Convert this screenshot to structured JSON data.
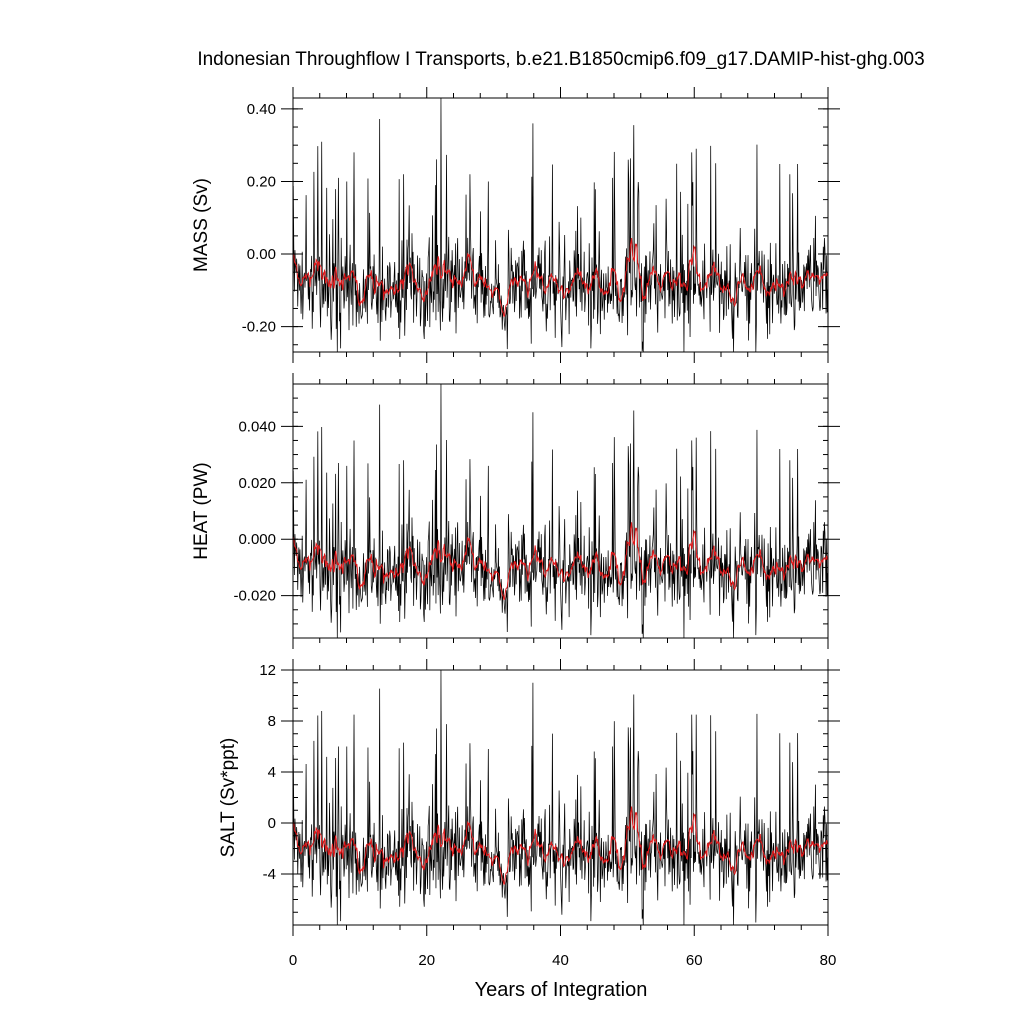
{
  "chart_data": {
    "type": "line",
    "title": "Indonesian Throughflow I Transports, b.e21.B1850cmip6.f09_g17.DAMIP-hist-ghg.003",
    "xlabel": "Years of Integration",
    "xlim": [
      0,
      80
    ],
    "xticks": [
      0,
      20,
      40,
      60,
      80
    ],
    "xtick_labels": [
      "0",
      "20",
      "40",
      "60",
      "80"
    ],
    "grid": false,
    "legend": "none",
    "colors": {
      "raw": "#000000",
      "smoothed": "#e0191b"
    },
    "panels": [
      {
        "ylabel": "MASS (Sv)",
        "ylim": [
          -0.27,
          0.43
        ],
        "yticks": [
          0.4,
          0.2,
          0.0,
          -0.2
        ],
        "ytick_labels": [
          "0.40",
          "0.20",
          "0.00",
          "-0.20"
        ],
        "minor_step": 0.05,
        "baseline": -0.09,
        "amplitude": 0.085,
        "peaks": [
          [
            22.1,
            0.43
          ],
          [
            35.9,
            0.36
          ],
          [
            60.3,
            0.29
          ],
          [
            59.6,
            0.28
          ],
          [
            9.1,
            0.28
          ],
          [
            8.0,
            0.2
          ],
          [
            50.1,
            0.26
          ],
          [
            63.2,
            0.25
          ],
          [
            16.5,
            0.22
          ],
          [
            74.3,
            0.22
          ],
          [
            6.8,
            0.21
          ],
          [
            29.2,
            0.2
          ],
          [
            47.8,
            0.21
          ]
        ],
        "troughs": [
          [
            52.4,
            -0.27
          ],
          [
            69.2,
            -0.27
          ],
          [
            7.1,
            -0.26
          ],
          [
            44.5,
            -0.26
          ]
        ]
      },
      {
        "ylabel": "HEAT (PW)",
        "ylim": [
          -0.035,
          0.055
        ],
        "yticks": [
          0.04,
          0.02,
          0.0,
          -0.02
        ],
        "ytick_labels": [
          "0.040",
          "0.020",
          "0.000",
          "-0.020"
        ],
        "minor_step": 0.005,
        "baseline": -0.011,
        "amplitude": 0.0108,
        "peaks": [
          [
            22.1,
            0.055
          ],
          [
            35.9,
            0.045
          ],
          [
            60.3,
            0.036
          ],
          [
            59.6,
            0.035
          ],
          [
            9.1,
            0.035
          ],
          [
            8.0,
            0.026
          ],
          [
            50.1,
            0.033
          ],
          [
            63.2,
            0.032
          ],
          [
            16.5,
            0.028
          ],
          [
            74.3,
            0.028
          ],
          [
            6.8,
            0.027
          ],
          [
            29.2,
            0.026
          ],
          [
            47.8,
            0.027
          ]
        ],
        "troughs": [
          [
            52.4,
            -0.035
          ],
          [
            69.2,
            -0.034
          ],
          [
            7.1,
            -0.033
          ],
          [
            44.5,
            -0.034
          ]
        ]
      },
      {
        "ylabel": "SALT (Sv*ppt)",
        "ylim": [
          -8,
          12
        ],
        "yticks": [
          12,
          8,
          4,
          0,
          -4
        ],
        "ytick_labels": [
          "12",
          "8",
          "4",
          "0",
          "-4"
        ],
        "minor_step": 1,
        "baseline": -2.5,
        "amplitude": 2.4,
        "peaks": [
          [
            22.1,
            12.0
          ],
          [
            35.9,
            11.0
          ],
          [
            60.3,
            8.5
          ],
          [
            59.6,
            8.5
          ],
          [
            9.1,
            8.5
          ],
          [
            8.0,
            6.0
          ],
          [
            50.1,
            7.5
          ],
          [
            63.2,
            7.2
          ],
          [
            16.5,
            6.3
          ],
          [
            74.3,
            6.3
          ],
          [
            6.8,
            6.0
          ],
          [
            29.2,
            5.8
          ],
          [
            47.8,
            6.0
          ]
        ],
        "troughs": [
          [
            52.4,
            -8.0
          ],
          [
            69.2,
            -7.8
          ],
          [
            7.1,
            -7.7
          ],
          [
            44.5,
            -7.7
          ]
        ]
      }
    ]
  }
}
